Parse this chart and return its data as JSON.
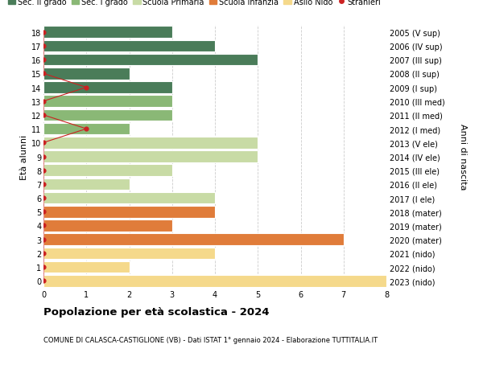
{
  "ages": [
    0,
    1,
    2,
    3,
    4,
    5,
    6,
    7,
    8,
    9,
    10,
    11,
    12,
    13,
    14,
    15,
    16,
    17,
    18
  ],
  "right_labels": [
    "2023 (nido)",
    "2022 (nido)",
    "2021 (nido)",
    "2020 (mater)",
    "2019 (mater)",
    "2018 (mater)",
    "2017 (I ele)",
    "2016 (II ele)",
    "2015 (III ele)",
    "2014 (IV ele)",
    "2013 (V ele)",
    "2012 (I med)",
    "2011 (II med)",
    "2010 (III med)",
    "2009 (I sup)",
    "2008 (II sup)",
    "2007 (III sup)",
    "2006 (IV sup)",
    "2005 (V sup)"
  ],
  "bar_values": [
    8,
    2,
    4,
    7,
    3,
    4,
    4,
    2,
    3,
    5,
    5,
    2,
    3,
    3,
    3,
    2,
    5,
    4,
    3
  ],
  "bar_colors": [
    "#f5d98b",
    "#f5d98b",
    "#f5d98b",
    "#e07c3a",
    "#e07c3a",
    "#e07c3a",
    "#c8dba5",
    "#c8dba5",
    "#c8dba5",
    "#c8dba5",
    "#c8dba5",
    "#8ab876",
    "#8ab876",
    "#8ab876",
    "#4a7c59",
    "#4a7c59",
    "#4a7c59",
    "#4a7c59",
    "#4a7c59"
  ],
  "stranieri_values": [
    0,
    0,
    0,
    0,
    0,
    0,
    0,
    0,
    0,
    0,
    0,
    1,
    0,
    0,
    1,
    0,
    0,
    0,
    0
  ],
  "legend_labels": [
    "Sec. II grado",
    "Sec. I grado",
    "Scuola Primaria",
    "Scuola Infanzia",
    "Asilo Nido",
    "Stranieri"
  ],
  "legend_colors": [
    "#4a7c59",
    "#8ab876",
    "#c8dba5",
    "#e07c3a",
    "#f5d98b",
    "#cc2222"
  ],
  "ylabel_left": "Età alunni",
  "ylabel_right": "Anni di nascita",
  "title": "Popolazione per età scolastica - 2024",
  "subtitle": "COMUNE DI CALASCA-CASTIGLIONE (VB) - Dati ISTAT 1° gennaio 2024 - Elaborazione TUTTITALIA.IT",
  "xlim": [
    0,
    8
  ],
  "grid_color": "#cccccc",
  "bg_color": "#ffffff",
  "bar_edge_color": "#ffffff"
}
